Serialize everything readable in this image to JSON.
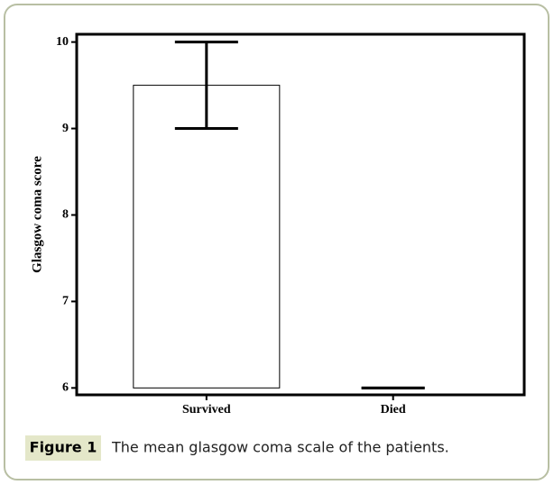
{
  "chart_data": {
    "type": "bar",
    "y_label": "Glasgow coma score",
    "categories": [
      "Survived",
      "Died"
    ],
    "values": [
      9.5,
      6
    ],
    "errors": [
      0.5,
      0
    ],
    "color": "#ffffff",
    "ylim": [
      5.92,
      10.09
    ],
    "yticks": [
      6,
      7,
      8,
      9,
      10
    ]
  },
  "caption": {
    "label": "Figure 1",
    "text": "The mean glasgow coma scale of the patients."
  }
}
